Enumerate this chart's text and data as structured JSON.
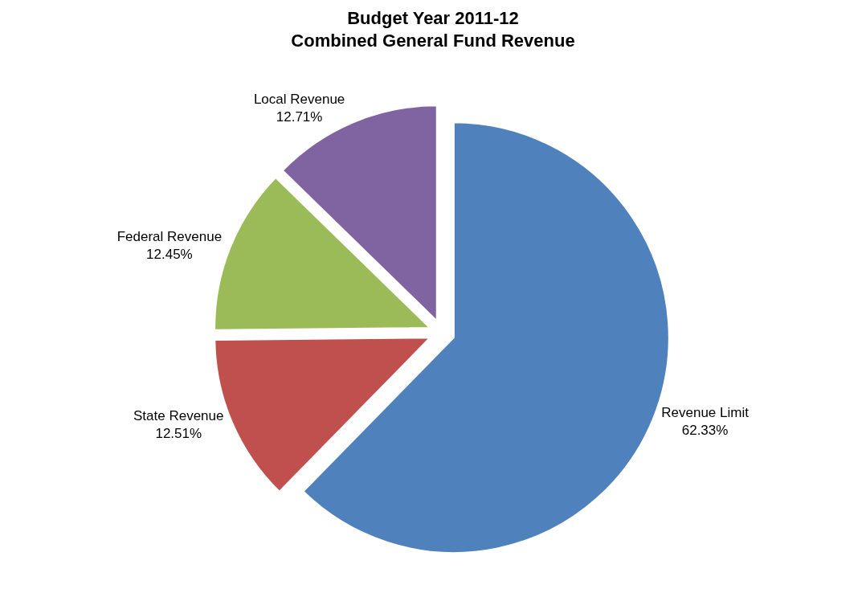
{
  "chart_data": {
    "type": "pie",
    "title": "Budget Year 2011-12\nCombined General Fund Revenue",
    "categories": [
      "Revenue Limit",
      "State Revenue",
      "Federal Revenue",
      "Local Revenue"
    ],
    "values": [
      62.33,
      12.51,
      12.45,
      12.71
    ],
    "value_labels": [
      "62.33%",
      "12.51%",
      "12.45%",
      "12.71%"
    ],
    "colors": [
      "#4f81bd",
      "#c0504d",
      "#9bbb59",
      "#8064a2"
    ],
    "legend": false
  }
}
